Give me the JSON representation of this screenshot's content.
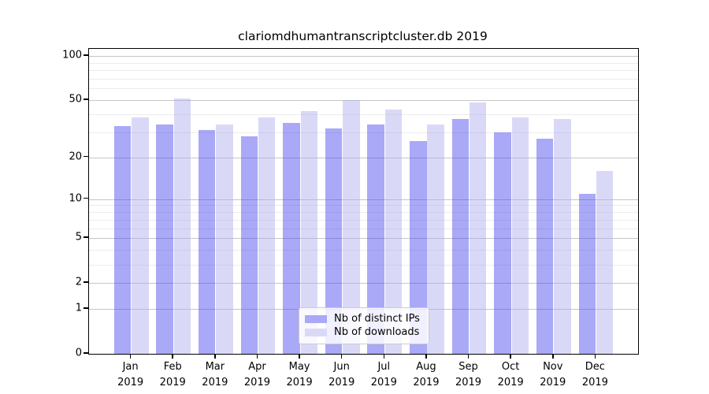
{
  "chart_data": {
    "type": "bar",
    "title": "clariomdhumantranscriptcluster.db 2019",
    "year": "2019",
    "categories": [
      "Jan",
      "Feb",
      "Mar",
      "Apr",
      "May",
      "Jun",
      "Jul",
      "Aug",
      "Sep",
      "Oct",
      "Nov",
      "Dec"
    ],
    "series": [
      {
        "name": "Nb of distinct IPs",
        "color": "#a9a9f7",
        "fill": "rgba(64,64,237,0.45)",
        "values": [
          33,
          34,
          31,
          28,
          35,
          32,
          34,
          26,
          37,
          30,
          27,
          11
        ]
      },
      {
        "name": "Nb of downloads",
        "color": "#d9d9f7",
        "fill": "rgba(171,171,237,0.45)",
        "values": [
          38,
          51,
          34,
          38,
          42,
          50,
          43,
          34,
          48,
          38,
          37,
          16
        ]
      }
    ],
    "y_scale": "log10(1+v)",
    "ylim": [
      0,
      101
    ],
    "y_ticks": [
      0,
      1,
      2,
      5,
      10,
      20,
      50,
      100
    ],
    "y_major_gridlines": [
      1,
      2,
      5,
      10,
      20,
      50,
      100
    ],
    "y_minor_gridlines": [
      3,
      4,
      6,
      7,
      8,
      9,
      30,
      40,
      60,
      70,
      80,
      90
    ],
    "grid": true,
    "legend_position": "bottom-center",
    "colors": {
      "grid_minor": "#ececec",
      "grid_major": "#c6c6c6",
      "axis": "#000000"
    }
  }
}
